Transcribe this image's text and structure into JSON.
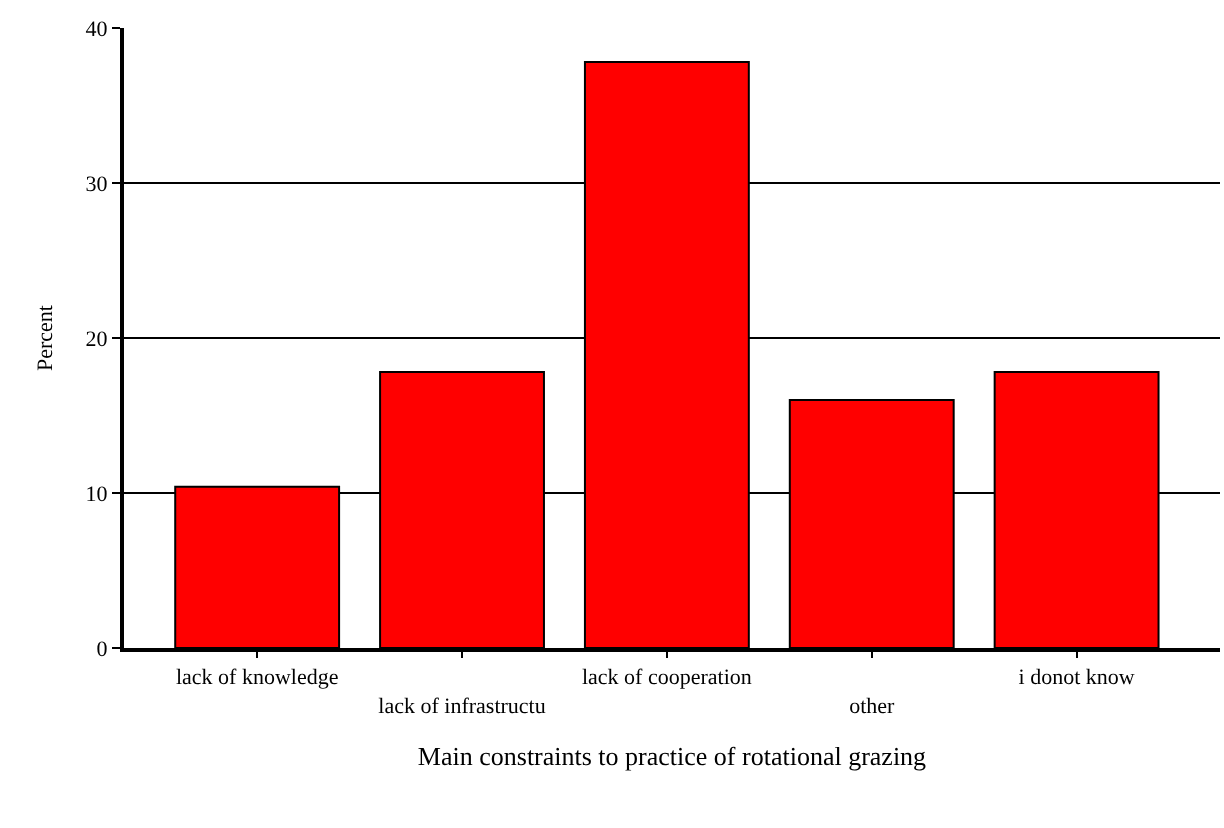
{
  "chart_data": {
    "type": "bar",
    "xlabel": "Main constraints to practice of rotational grazing",
    "ylabel": "Percent",
    "categories": [
      "lack of knowledge",
      "lack of infrastructu",
      "lack of cooperation",
      "other",
      "i donot know"
    ],
    "values": [
      10.4,
      17.8,
      37.8,
      16.0,
      17.8
    ],
    "color": "#ff0000",
    "ylim": [
      0,
      40
    ],
    "yticks": [
      0,
      10,
      20,
      30,
      40
    ],
    "grid": "y",
    "legend": false
  }
}
